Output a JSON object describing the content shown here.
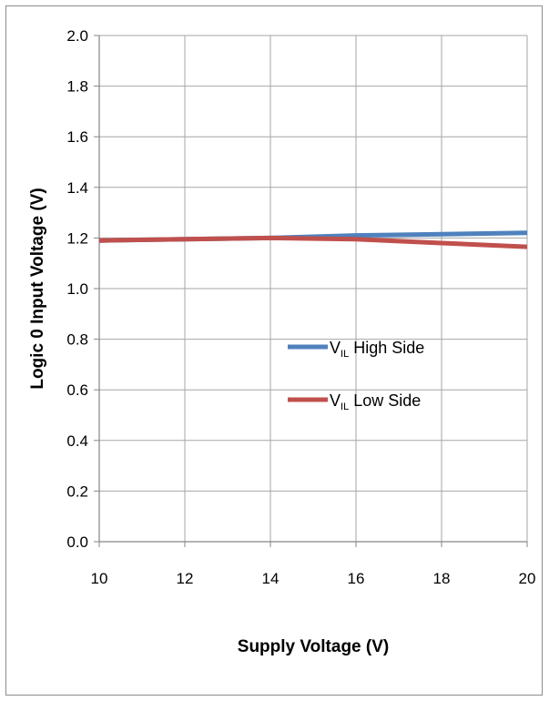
{
  "chart_data": {
    "type": "line",
    "xlabel": "Supply Voltage (V)",
    "ylabel": "Logic 0 Input Voltage (V)",
    "xlim": [
      10,
      20
    ],
    "ylim": [
      0,
      2.0
    ],
    "x_ticks": [
      "10",
      "12",
      "14",
      "16",
      "18",
      "20"
    ],
    "y_ticks": [
      "0.0",
      "0.2",
      "0.4",
      "0.6",
      "0.8",
      "1.0",
      "1.2",
      "1.4",
      "1.6",
      "1.8",
      "2.0"
    ],
    "grid": true,
    "legend_position": "center-right",
    "series": [
      {
        "name_main": "V",
        "name_sub": "IL",
        "name_rest": " High Side",
        "color": "#4f81bd",
        "x": [
          10,
          12,
          14,
          16,
          18,
          20
        ],
        "y": [
          1.19,
          1.195,
          1.2,
          1.21,
          1.215,
          1.22
        ]
      },
      {
        "name_main": "V",
        "name_sub": "IL",
        "name_rest": " Low Side",
        "color": "#c0504d",
        "x": [
          10,
          12,
          14,
          16,
          18,
          20
        ],
        "y": [
          1.19,
          1.195,
          1.2,
          1.195,
          1.18,
          1.165
        ]
      }
    ]
  }
}
